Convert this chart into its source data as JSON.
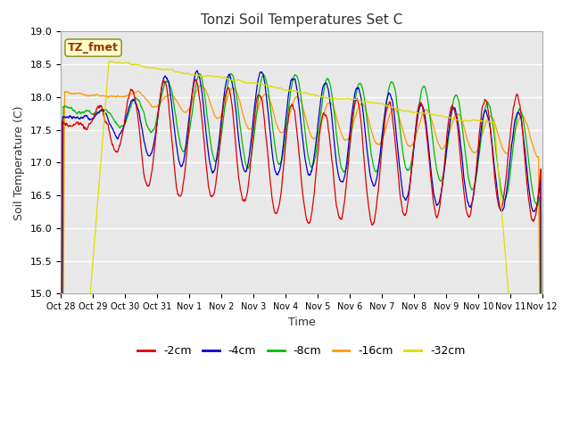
{
  "title": "Tonzi Soil Temperatures Set C",
  "xlabel": "Time",
  "ylabel": "Soil Temperature (C)",
  "ylim": [
    15.0,
    19.0
  ],
  "yticks": [
    15.0,
    15.5,
    16.0,
    16.5,
    17.0,
    17.5,
    18.0,
    18.5,
    19.0
  ],
  "xtick_labels": [
    "Oct 28",
    "Oct 29",
    "Oct 30",
    "Oct 31",
    "Nov 1",
    "Nov 2",
    "Nov 3",
    "Nov 4",
    "Nov 5",
    "Nov 6",
    "Nov 7",
    "Nov 8",
    "Nov 9",
    "Nov 10",
    "Nov 11",
    "Nov 12"
  ],
  "legend_labels": [
    "-2cm",
    "-4cm",
    "-8cm",
    "-16cm",
    "-32cm"
  ],
  "legend_colors": [
    "#dd0000",
    "#0000cc",
    "#00bb00",
    "#ff9900",
    "#dddd00"
  ],
  "annotation_text": "TZ_fmet",
  "annotation_bg": "#ffffcc",
  "annotation_border": "#993300",
  "line_colors": {
    "2cm": "#dd0000",
    "4cm": "#0000cc",
    "8cm": "#00bb00",
    "16cm": "#ff9900",
    "32cm": "#dddd00"
  },
  "fig_bg": "#ffffff",
  "plot_bg": "#e8e8e8",
  "n_days": 15,
  "samples_per_day": 96
}
